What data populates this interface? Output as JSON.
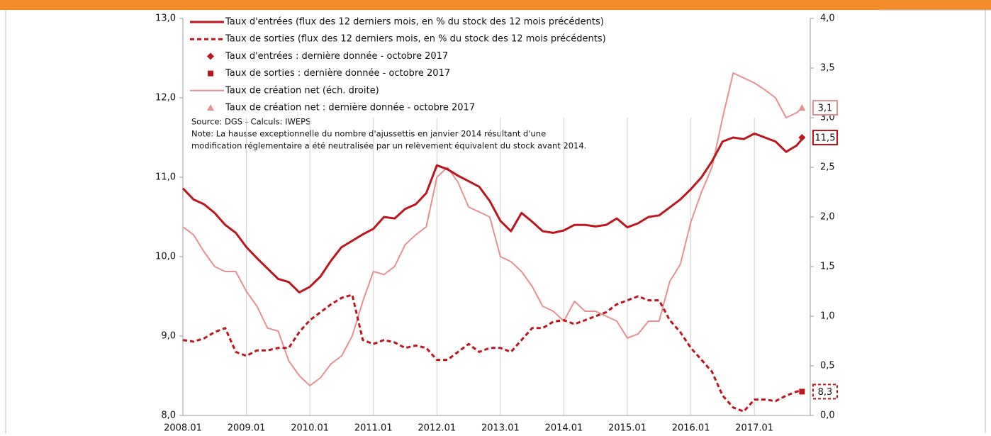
{
  "chart_data": {
    "type": "line",
    "source": "Source: DGS - Calculs: IWEPS",
    "note_lines": [
      "Note: La hausse exceptionnelle du nombre d'ajussettis en janvier 2014 résultant d'une",
      "modification réglementaire a été neutralisée par un relèvement équivalent du stock avant 2014."
    ],
    "x": [
      2008,
      2008.167,
      2008.333,
      2008.5,
      2008.667,
      2008.833,
      2009,
      2009.167,
      2009.333,
      2009.5,
      2009.667,
      2009.833,
      2010,
      2010.167,
      2010.333,
      2010.5,
      2010.667,
      2010.833,
      2011,
      2011.167,
      2011.333,
      2011.5,
      2011.667,
      2011.833,
      2012,
      2012.167,
      2012.333,
      2012.5,
      2012.667,
      2012.833,
      2013,
      2013.167,
      2013.333,
      2013.5,
      2013.667,
      2013.833,
      2014,
      2014.167,
      2014.333,
      2014.5,
      2014.667,
      2014.833,
      2015,
      2015.167,
      2015.333,
      2015.5,
      2015.667,
      2015.833,
      2016,
      2016.167,
      2016.333,
      2016.5,
      2016.667,
      2016.833,
      2017,
      2017.167,
      2017.333,
      2017.5,
      2017.667,
      2017.75
    ],
    "xlim": [
      2008,
      2017.88
    ],
    "xticks": [
      {
        "value": 2008,
        "label": "2008.01"
      },
      {
        "value": 2009,
        "label": "2009.01"
      },
      {
        "value": 2010,
        "label": "2010.01"
      },
      {
        "value": 2011,
        "label": "2011.01"
      },
      {
        "value": 2012,
        "label": "2012.01"
      },
      {
        "value": 2013,
        "label": "2013.01"
      },
      {
        "value": 2014,
        "label": "2014.01"
      },
      {
        "value": 2015,
        "label": "2015.01"
      },
      {
        "value": 2016,
        "label": "2016.01"
      },
      {
        "value": 2017,
        "label": "2017.01"
      }
    ],
    "ylim": [
      8,
      13
    ],
    "yticks": [
      {
        "value": 8,
        "label": "8,0"
      },
      {
        "value": 9,
        "label": "9,0"
      },
      {
        "value": 10,
        "label": "10,0"
      },
      {
        "value": 11,
        "label": "11,0"
      },
      {
        "value": 12,
        "label": "12,0"
      },
      {
        "value": 13,
        "label": "13,0"
      }
    ],
    "y2lim": [
      0,
      4
    ],
    "y2ticks": [
      {
        "value": 0,
        "label": "0,0"
      },
      {
        "value": 0.5,
        "label": "0,5"
      },
      {
        "value": 1,
        "label": "1,0"
      },
      {
        "value": 1.5,
        "label": "1,5"
      },
      {
        "value": 2,
        "label": "2,0"
      },
      {
        "value": 2.5,
        "label": "2,5"
      },
      {
        "value": 3,
        "label": "3,0"
      },
      {
        "value": 3.5,
        "label": "3,5"
      },
      {
        "value": 4,
        "label": "4,0"
      }
    ],
    "grid": true,
    "series": [
      {
        "name": "Taux d'entrées (flux des 12 derniers mois, en % du stock des 12 mois précédents)",
        "color": "#c0141c",
        "style": "solid",
        "values": [
          10.86,
          10.72,
          10.66,
          10.55,
          10.4,
          10.3,
          10.12,
          9.98,
          9.85,
          9.72,
          9.68,
          9.55,
          9.62,
          9.75,
          9.95,
          10.12,
          10.2,
          10.28,
          10.35,
          10.5,
          10.48,
          10.6,
          10.66,
          10.8,
          11.15,
          11.1,
          11.02,
          10.95,
          10.88,
          10.7,
          10.45,
          10.32,
          10.55,
          10.44,
          10.32,
          10.3,
          10.33,
          10.4,
          10.4,
          10.38,
          10.4,
          10.48,
          10.37,
          10.42,
          10.5,
          10.52,
          10.62,
          10.72,
          10.85,
          11.0,
          11.2,
          11.45,
          11.5,
          11.48,
          11.55,
          11.5,
          11.45,
          11.32,
          11.4,
          11.48
        ]
      },
      {
        "name": "Taux de sorties (flux des 12 derniers mois, en % du stock des 12 mois précédents)",
        "color": "#c0141c",
        "style": "dashed",
        "values": [
          8.95,
          8.93,
          8.97,
          9.05,
          9.1,
          8.8,
          8.75,
          8.82,
          8.82,
          8.85,
          8.85,
          9.05,
          9.2,
          9.3,
          9.4,
          9.48,
          9.52,
          8.95,
          8.9,
          8.95,
          8.92,
          8.85,
          8.88,
          8.85,
          8.7,
          8.7,
          8.8,
          8.9,
          8.8,
          8.85,
          8.85,
          8.8,
          8.95,
          9.1,
          9.1,
          9.18,
          9.2,
          9.15,
          9.2,
          9.25,
          9.3,
          9.4,
          9.45,
          9.5,
          9.45,
          9.45,
          9.2,
          9.05,
          8.85,
          8.7,
          8.55,
          8.25,
          8.1,
          8.05,
          8.2,
          8.2,
          8.18,
          8.25,
          8.3,
          8.32
        ]
      },
      {
        "name": "Taux d'entrées : dernière donnée - octobre 2017",
        "color": "#c0141c",
        "marker": "diamond",
        "x": [
          2017.75
        ],
        "values": [
          11.5
        ],
        "value_labels": [
          "11,5"
        ]
      },
      {
        "name": "Taux de sorties : dernière donnée - octobre 2017",
        "color": "#c0141c",
        "marker": "square",
        "x": [
          2017.75
        ],
        "values": [
          8.3
        ],
        "value_labels": [
          "8,3"
        ],
        "label_style": "dashed"
      },
      {
        "name": "Taux de création net (éch. droite)",
        "color": "#e89090",
        "style": "solid",
        "axis": "y2",
        "values": [
          1.9,
          1.82,
          1.65,
          1.5,
          1.45,
          1.45,
          1.25,
          1.1,
          0.88,
          0.85,
          0.55,
          0.4,
          0.3,
          0.38,
          0.52,
          0.6,
          0.8,
          1.15,
          1.45,
          1.42,
          1.5,
          1.72,
          1.82,
          1.9,
          2.4,
          2.5,
          2.35,
          2.1,
          2.05,
          2.0,
          1.6,
          1.55,
          1.45,
          1.3,
          1.1,
          1.05,
          0.95,
          1.15,
          1.05,
          1.05,
          1.0,
          0.95,
          0.78,
          0.82,
          0.95,
          0.95,
          1.35,
          1.52,
          1.95,
          2.25,
          2.5,
          3.0,
          3.45,
          3.4,
          3.35,
          3.28,
          3.2,
          3.0,
          3.05,
          3.1
        ]
      },
      {
        "name": "Taux de création net : dernière donnée - octobre 2017",
        "color": "#e89090",
        "marker": "triangle",
        "axis": "y2",
        "x": [
          2017.75
        ],
        "values": [
          3.1
        ],
        "value_labels": [
          "3,1"
        ]
      }
    ]
  }
}
